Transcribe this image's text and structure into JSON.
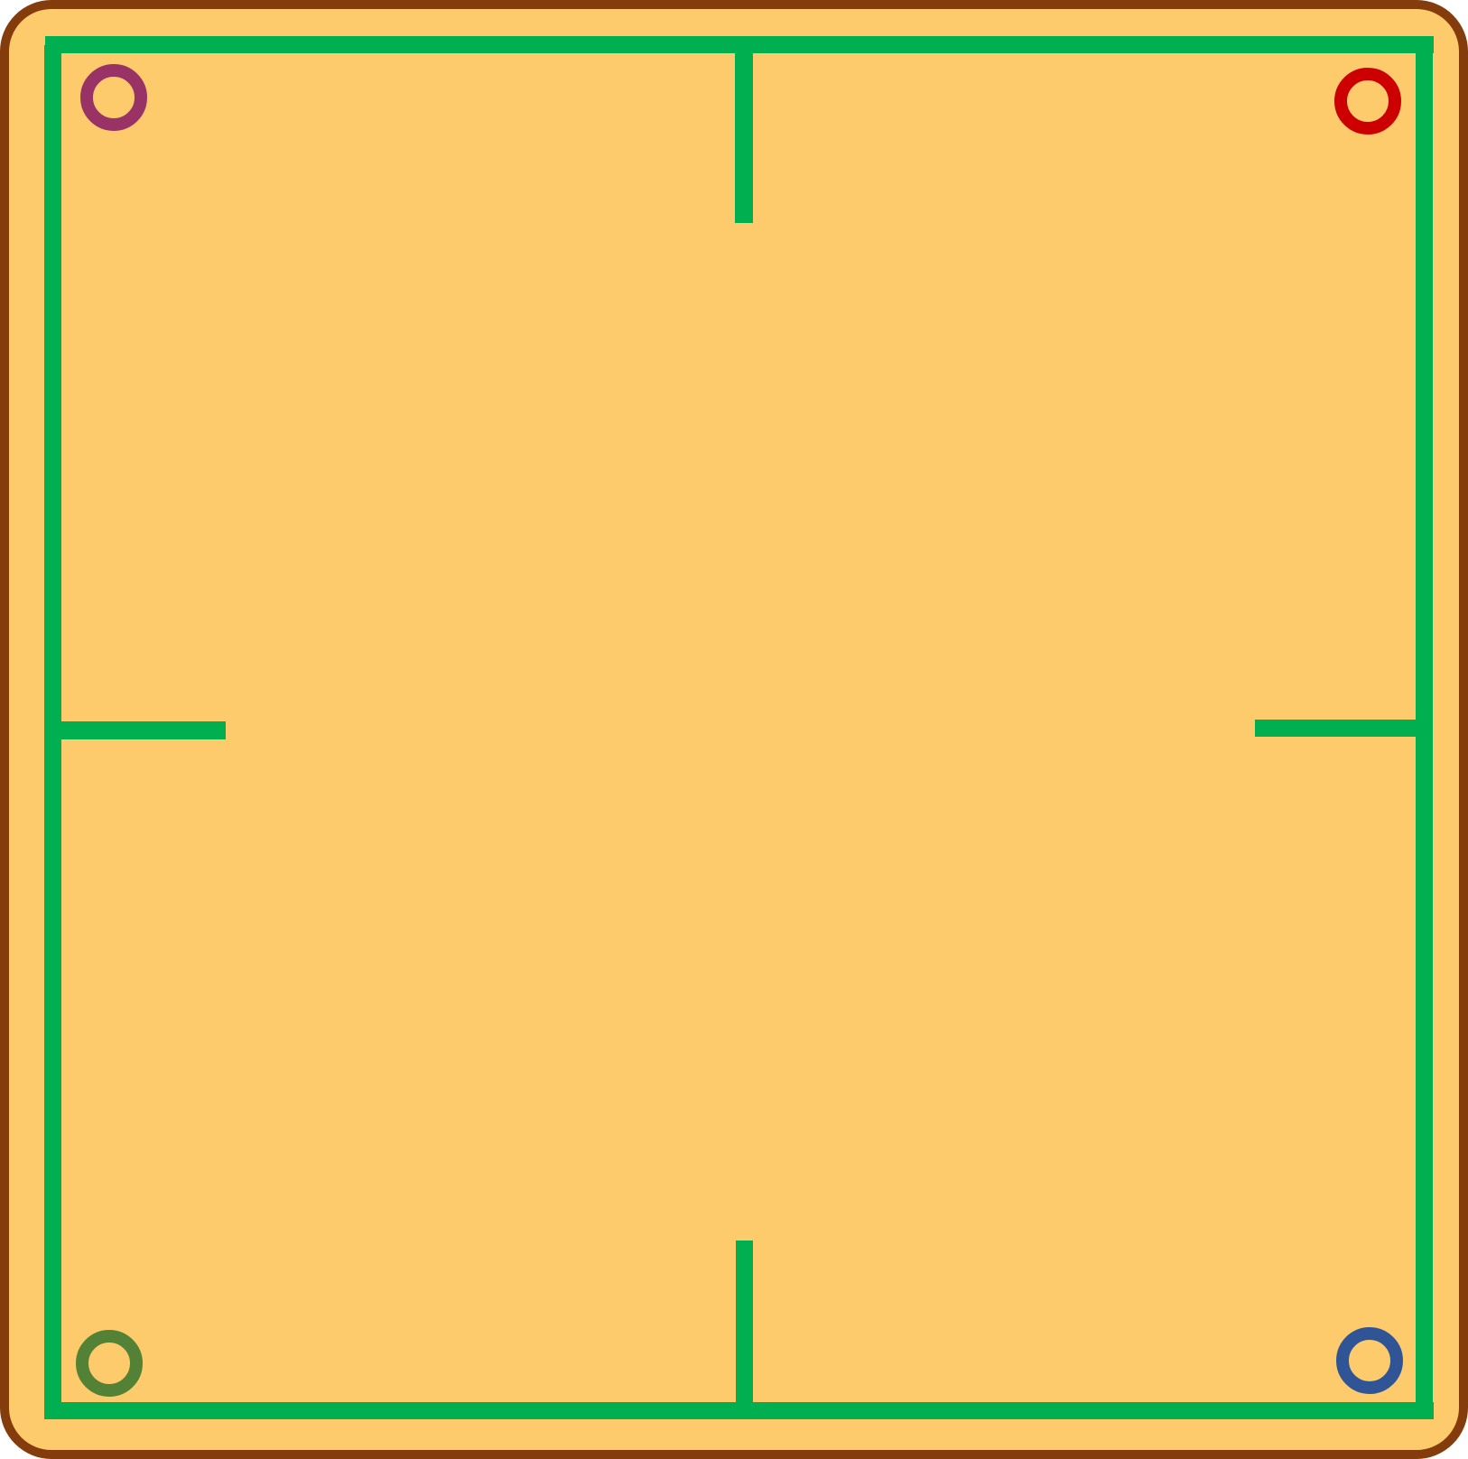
{
  "board": {
    "background_color": "#FECB6C",
    "border_color": "#843C0C",
    "wall_color": "#00B050"
  },
  "markers": [
    {
      "name": "marker-top-left",
      "color": "#993366"
    },
    {
      "name": "marker-top-right",
      "color": "#CC0000"
    },
    {
      "name": "marker-bottom-left",
      "color": "#538135"
    },
    {
      "name": "marker-bottom-right",
      "color": "#2F5597"
    }
  ]
}
